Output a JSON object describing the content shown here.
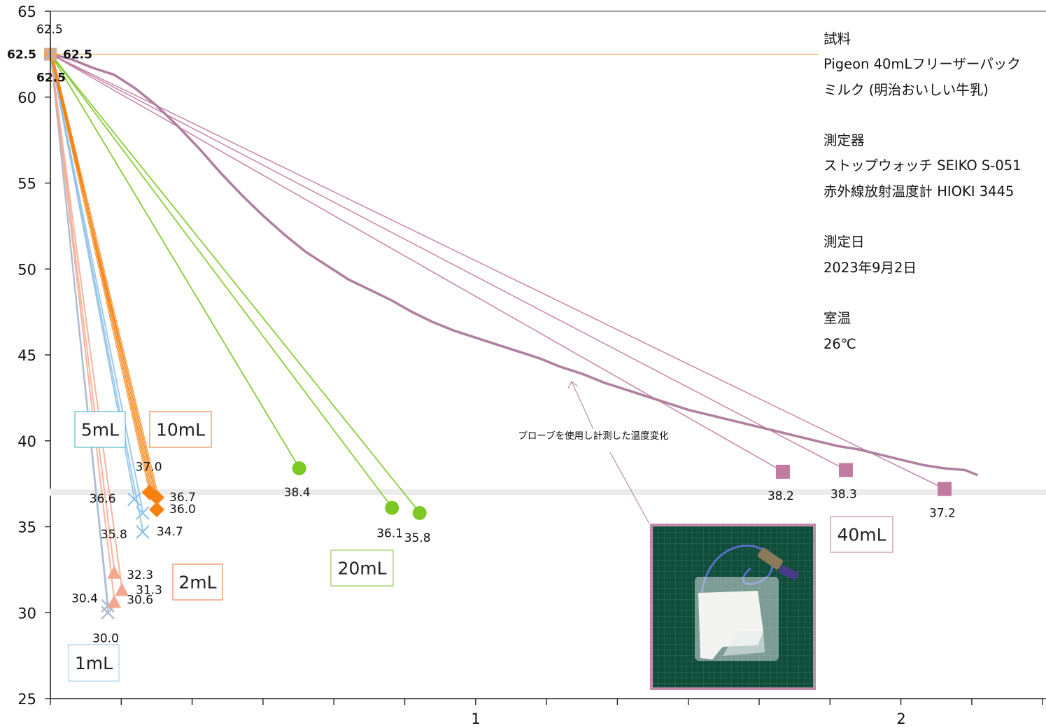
{
  "chart_data": {
    "type": "scatter",
    "ylim": [
      25,
      65
    ],
    "y_ticks": [
      25,
      30,
      35,
      40,
      45,
      50,
      55,
      60,
      65
    ],
    "x_ticks": [
      "1",
      "2"
    ],
    "xlim": [
      0,
      2.35
    ],
    "start_point": {
      "x": 0,
      "y": 62.5,
      "labels": [
        "62.5",
        "62.5",
        "62.5",
        "62.5"
      ]
    },
    "series": [
      {
        "name": "1mL",
        "color": "#a8b8d4",
        "marker": "x",
        "box_border": "#a9d3ea",
        "points": [
          {
            "x": 0.135,
            "y": 30.4,
            "label": "30.4"
          },
          {
            "x": 0.135,
            "y": 30.0,
            "label": "30.0"
          }
        ]
      },
      {
        "name": "2mL",
        "color": "#f4a88f",
        "marker": "triangle",
        "box_border": "#ed8a50",
        "points": [
          {
            "x": 0.15,
            "y": 32.3,
            "label": "32.3"
          },
          {
            "x": 0.168,
            "y": 31.3,
            "label": "31.3"
          },
          {
            "x": 0.15,
            "y": 30.6,
            "label": "30.6"
          }
        ]
      },
      {
        "name": "5mL",
        "color": "#8ec0ea",
        "marker": "x",
        "box_border": "#5bbccb",
        "points": [
          {
            "x": 0.197,
            "y": 36.6,
            "label": "36.6"
          },
          {
            "x": 0.217,
            "y": 35.8,
            "label": "35.8"
          },
          {
            "x": 0.217,
            "y": 34.7,
            "label": "34.7"
          }
        ]
      },
      {
        "name": "10mL",
        "color": "#f7800e",
        "marker": "diamond",
        "box_border": "#ed8a50",
        "points": [
          {
            "x": 0.233,
            "y": 37.0,
            "label": "37.0"
          },
          {
            "x": 0.25,
            "y": 36.7,
            "label": "36.7"
          },
          {
            "x": 0.25,
            "y": 36.0,
            "label": "36.0"
          }
        ]
      },
      {
        "name": "20mL",
        "color": "#7cc825",
        "marker": "circle",
        "box_border": "#9bcc55",
        "points": [
          {
            "x": 0.585,
            "y": 38.4,
            "label": "38.4"
          },
          {
            "x": 0.803,
            "y": 36.1,
            "label": "36.1"
          },
          {
            "x": 0.868,
            "y": 35.8,
            "label": "35.8"
          }
        ]
      },
      {
        "name": "40mL",
        "color": "#c27ba0",
        "marker": "square",
        "box_border": "#c78fae",
        "points": [
          {
            "x": 1.722,
            "y": 38.2,
            "label": "38.2"
          },
          {
            "x": 1.87,
            "y": 38.3,
            "label": "38.3"
          },
          {
            "x": 2.102,
            "y": 37.2,
            "label": "37.2"
          }
        ]
      }
    ],
    "probe_curve": {
      "annotation": "プローブを使用し計測した温度変化",
      "color": "#b07fa0",
      "points": [
        [
          0,
          62.5
        ],
        [
          0.05,
          62.2
        ],
        [
          0.1,
          61.7
        ],
        [
          0.15,
          61.3
        ],
        [
          0.2,
          60.5
        ],
        [
          0.25,
          59.5
        ],
        [
          0.3,
          58.3
        ],
        [
          0.35,
          57.0
        ],
        [
          0.4,
          55.6
        ],
        [
          0.45,
          54.3
        ],
        [
          0.5,
          53.1
        ],
        [
          0.55,
          52.0
        ],
        [
          0.6,
          51.0
        ],
        [
          0.65,
          50.2
        ],
        [
          0.7,
          49.4
        ],
        [
          0.75,
          48.8
        ],
        [
          0.8,
          48.2
        ],
        [
          0.85,
          47.5
        ],
        [
          0.9,
          46.9
        ],
        [
          0.95,
          46.4
        ],
        [
          1.0,
          46.0
        ],
        [
          1.05,
          45.6
        ],
        [
          1.1,
          45.2
        ],
        [
          1.15,
          44.8
        ],
        [
          1.2,
          44.3
        ],
        [
          1.25,
          43.9
        ],
        [
          1.3,
          43.4
        ],
        [
          1.35,
          43.0
        ],
        [
          1.4,
          42.6
        ],
        [
          1.45,
          42.2
        ],
        [
          1.5,
          41.8
        ],
        [
          1.55,
          41.5
        ],
        [
          1.6,
          41.2
        ],
        [
          1.65,
          40.9
        ],
        [
          1.7,
          40.6
        ],
        [
          1.75,
          40.3
        ],
        [
          1.8,
          40.0
        ],
        [
          1.85,
          39.7
        ],
        [
          1.9,
          39.5
        ],
        [
          1.95,
          39.2
        ],
        [
          2.0,
          38.9
        ],
        [
          2.05,
          38.6
        ],
        [
          2.1,
          38.4
        ],
        [
          2.15,
          38.3
        ],
        [
          2.18,
          38.0
        ]
      ]
    }
  },
  "info": {
    "sample_heading": "試料",
    "sample_line1": "Pigeon 40mLフリーザーパック",
    "sample_line2": "ミルク (明治おいしい牛乳)",
    "instrument_heading": "測定器",
    "instrument_line1": "ストップウォッチ SEIKO S-051",
    "instrument_line2": "赤外線放射温度計 HIOKI 3445",
    "date_heading": "測定日",
    "date_value": "2023年9月2日",
    "room_heading": "室温",
    "room_value": "26℃"
  },
  "colors": {
    "axis": "#222222",
    "reference_line": "#e8a04a"
  }
}
